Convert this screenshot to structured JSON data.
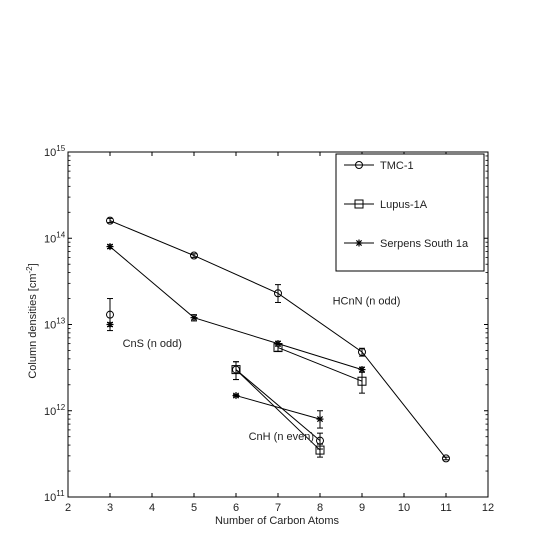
{
  "chart_data": {
    "type": "line",
    "xlabel": "Number of Carbon Atoms",
    "ylabel": "Column densities [cm",
    "ylabel_sup": "-2",
    "ylabel_end": "]",
    "xlim": [
      2,
      12
    ],
    "ylim": [
      100000000000.0,
      1000000000000000.0
    ],
    "yscale": "log",
    "grid": false,
    "legend_position": "top-right",
    "x_ticks": [
      {
        "value": 2,
        "label": "2"
      },
      {
        "value": 3,
        "label": "3"
      },
      {
        "value": 4,
        "label": "4"
      },
      {
        "value": 5,
        "label": "5"
      },
      {
        "value": 6,
        "label": "6"
      },
      {
        "value": 7,
        "label": "7"
      },
      {
        "value": 8,
        "label": "8"
      },
      {
        "value": 9,
        "label": "9"
      },
      {
        "value": 10,
        "label": "10"
      },
      {
        "value": 11,
        "label": "11"
      },
      {
        "value": 12,
        "label": "12"
      }
    ],
    "y_ticks": [
      {
        "value": 100000000000.0,
        "base": "10",
        "exp": "11"
      },
      {
        "value": 1000000000000.0,
        "base": "10",
        "exp": "12"
      },
      {
        "value": 10000000000000.0,
        "base": "10",
        "exp": "13"
      },
      {
        "value": 100000000000000.0,
        "base": "10",
        "exp": "14"
      },
      {
        "value": 1000000000000000.0,
        "base": "10",
        "exp": "15"
      }
    ],
    "annotations": [
      {
        "id": "hcnn",
        "text": "HCnN (n odd)",
        "x": 8.3,
        "y": 17000000000000.0
      },
      {
        "id": "cns",
        "text": "CnS (n odd)",
        "x": 3.3,
        "y": 5500000000000.0
      },
      {
        "id": "cnh",
        "text": "CnH (n even)",
        "x": 6.3,
        "y": 460000000000.0
      }
    ],
    "series": [
      {
        "name": "TMC-1",
        "marker": "circle",
        "groups": [
          {
            "family": "HCnN",
            "points": [
              {
                "x": 3,
                "y": 160000000000000.0,
                "lo": 152000000000000.0,
                "hi": 170000000000000.0
              },
              {
                "x": 5,
                "y": 63000000000000.0,
                "lo": 60000000000000.0,
                "hi": 66000000000000.0
              },
              {
                "x": 7,
                "y": 23000000000000.0,
                "lo": 18000000000000.0,
                "hi": 29000000000000.0
              },
              {
                "x": 9,
                "y": 4800000000000.0,
                "lo": 4300000000000.0,
                "hi": 5300000000000.0
              },
              {
                "x": 11,
                "y": 280000000000.0,
                "lo": 270000000000.0,
                "hi": 290000000000.0
              }
            ]
          },
          {
            "family": "CnH",
            "points": [
              {
                "x": 6,
                "y": 3000000000000.0,
                "lo": 2300000000000.0,
                "hi": 3700000000000.0
              },
              {
                "x": 8,
                "y": 450000000000.0,
                "lo": 360000000000.0,
                "hi": 550000000000.0
              }
            ]
          },
          {
            "family": "CnS",
            "points": [
              {
                "x": 3,
                "y": 13000000000000.0,
                "lo": 8500000000000.0,
                "hi": 20000000000000.0
              }
            ]
          }
        ]
      },
      {
        "name": "Lupus-1A",
        "marker": "square",
        "groups": [
          {
            "family": "HCnN",
            "points": [
              {
                "x": 7,
                "y": 5400000000000.0,
                "lo": 4900000000000.0,
                "hi": 5900000000000.0
              },
              {
                "x": 9,
                "y": 2200000000000.0,
                "lo": 1600000000000.0,
                "hi": 2800000000000.0
              }
            ]
          },
          {
            "family": "CnH",
            "points": [
              {
                "x": 6,
                "y": 3000000000000.0,
                "lo": 2300000000000.0,
                "hi": 3700000000000.0
              },
              {
                "x": 8,
                "y": 350000000000.0,
                "lo": 290000000000.0,
                "hi": 410000000000.0
              }
            ]
          }
        ]
      },
      {
        "name": "Serpens South 1a",
        "marker": "star",
        "groups": [
          {
            "family": "HCnN",
            "points": [
              {
                "x": 3,
                "y": 80000000000000.0,
                "lo": 76000000000000.0,
                "hi": 84000000000000.0
              },
              {
                "x": 5,
                "y": 12000000000000.0,
                "lo": 11000000000000.0,
                "hi": 13000000000000.0
              },
              {
                "x": 7,
                "y": 6000000000000.0,
                "lo": 5600000000000.0,
                "hi": 6400000000000.0
              },
              {
                "x": 9,
                "y": 3000000000000.0,
                "lo": 2800000000000.0,
                "hi": 3200000000000.0
              }
            ]
          },
          {
            "family": "CnH",
            "points": [
              {
                "x": 6,
                "y": 1500000000000.0,
                "lo": 1450000000000.0,
                "hi": 1550000000000.0
              },
              {
                "x": 8,
                "y": 800000000000.0,
                "lo": 630000000000.0,
                "hi": 1000000000000.0
              }
            ]
          },
          {
            "family": "CnS",
            "points": [
              {
                "x": 3,
                "y": 10000000000000.0,
                "lo": 9500000000000.0,
                "hi": 10500000000000.0
              }
            ]
          }
        ]
      }
    ]
  },
  "colors": {
    "axis": "#000000",
    "series": "#000000",
    "background": "#ffffff"
  }
}
